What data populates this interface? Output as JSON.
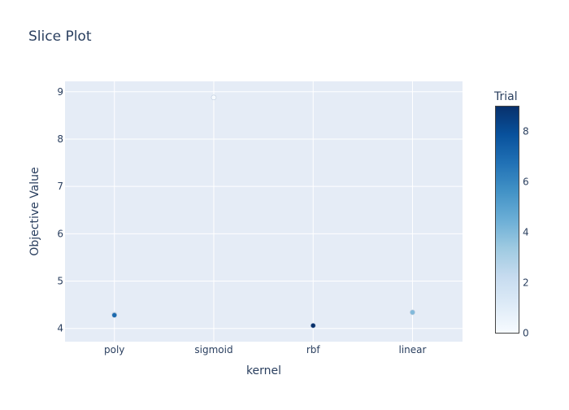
{
  "chart_data": {
    "type": "scatter",
    "title": "Slice Plot",
    "xlabel": "kernel",
    "ylabel": "Objective Value",
    "categories": [
      "poly",
      "sigmoid",
      "rbf",
      "linear"
    ],
    "yticks": [
      4,
      5,
      6,
      7,
      8,
      9
    ],
    "ylim": [
      3.72,
      9.22
    ],
    "points": [
      {
        "x": "poly",
        "y": 4.29,
        "trial": 6
      },
      {
        "x": "poly",
        "y": 4.28,
        "trial": 7
      },
      {
        "x": "sigmoid",
        "y": 8.88,
        "trial": 0
      },
      {
        "x": "rbf",
        "y": 4.06,
        "trial": 9
      },
      {
        "x": "linear",
        "y": 4.34,
        "trial": 4
      }
    ],
    "colorbar": {
      "title": "Trial",
      "ticks": [
        0,
        2,
        4,
        6,
        8
      ],
      "range": [
        0,
        9
      ],
      "colorscale": [
        "#f7fbff",
        "#deebf7",
        "#c6dbef",
        "#9ecae1",
        "#6baed6",
        "#4292c6",
        "#2171b5",
        "#08519c",
        "#08306b"
      ]
    },
    "grid": true,
    "plot_bgcolor": "#e5ecf6",
    "text_color": "#2a3f5f"
  }
}
